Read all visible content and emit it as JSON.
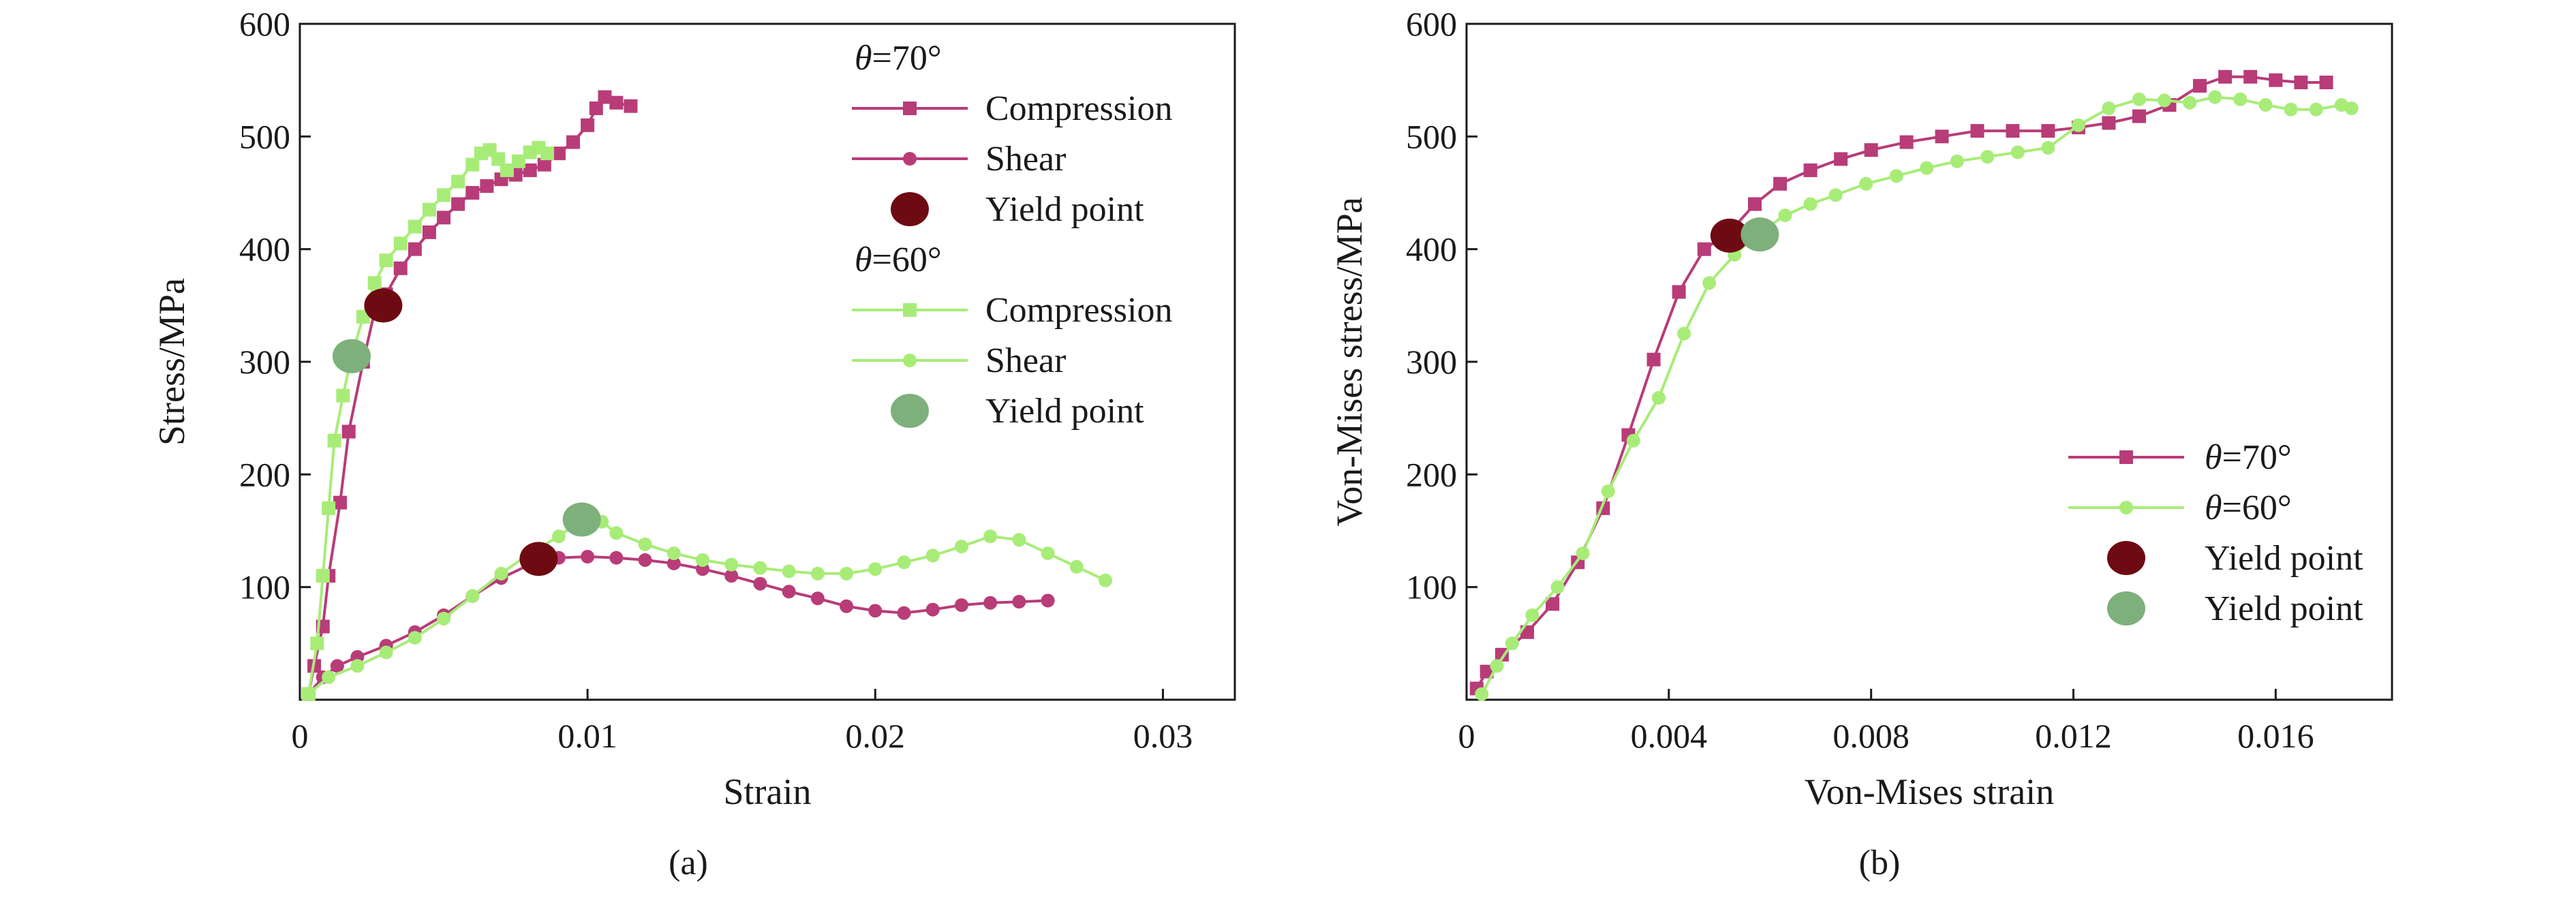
{
  "colors": {
    "theta70": "#b83c78",
    "theta60": "#a8ec78",
    "yield70": "#6e0a12",
    "yield60": "#7eb07c",
    "axis": "#1a1a1a"
  },
  "chart_data": [
    {
      "type": "line",
      "panel_label": "(a)",
      "xlabel": "Strain",
      "ylabel": "Stress/MPa",
      "xlim": [
        0,
        0.0325
      ],
      "ylim": [
        0,
        600
      ],
      "xticks": [
        0,
        0.01,
        0.02,
        0.03
      ],
      "xtick_labels": [
        "0",
        "0.01",
        "0.02",
        "0.03"
      ],
      "yticks": [
        100,
        200,
        300,
        400,
        500,
        600
      ],
      "ytick_labels": [
        "100",
        "200",
        "300",
        "400",
        "500",
        "600"
      ],
      "grid": false,
      "legend_position": "top-right",
      "legend_groups": [
        {
          "heading_symbol": "θ",
          "heading_value": "=70°",
          "entries": [
            "Compression",
            "Shear",
            "Yield point"
          ]
        },
        {
          "heading_symbol": "θ",
          "heading_value": "=60°",
          "entries": [
            "Compression",
            "Shear",
            "Yield point"
          ]
        }
      ],
      "series": [
        {
          "name": "θ=70° Compression",
          "color_key": "theta70",
          "marker": "square",
          "points": [
            [
              0.0003,
              5
            ],
            [
              0.0005,
              30
            ],
            [
              0.0008,
              65
            ],
            [
              0.001,
              110
            ],
            [
              0.0014,
              175
            ],
            [
              0.0017,
              238
            ],
            [
              0.0022,
              300
            ],
            [
              0.0026,
              345
            ],
            [
              0.003,
              360
            ],
            [
              0.0035,
              383
            ],
            [
              0.004,
              400
            ],
            [
              0.0045,
              415
            ],
            [
              0.005,
              428
            ],
            [
              0.0055,
              440
            ],
            [
              0.006,
              450
            ],
            [
              0.0065,
              456
            ],
            [
              0.007,
              462
            ],
            [
              0.0075,
              466
            ],
            [
              0.008,
              470
            ],
            [
              0.0085,
              475
            ],
            [
              0.009,
              485
            ],
            [
              0.0095,
              495
            ],
            [
              0.01,
              510
            ],
            [
              0.0103,
              525
            ],
            [
              0.0106,
              535
            ],
            [
              0.011,
              530
            ],
            [
              0.0115,
              527
            ]
          ]
        },
        {
          "name": "θ=70° Shear",
          "color_key": "theta70",
          "marker": "circle",
          "points": [
            [
              0.0003,
              5
            ],
            [
              0.0008,
              20
            ],
            [
              0.0013,
              30
            ],
            [
              0.002,
              38
            ],
            [
              0.003,
              48
            ],
            [
              0.004,
              60
            ],
            [
              0.005,
              75
            ],
            [
              0.006,
              92
            ],
            [
              0.007,
              108
            ],
            [
              0.008,
              120
            ],
            [
              0.009,
              126
            ],
            [
              0.01,
              127
            ],
            [
              0.011,
              126
            ],
            [
              0.012,
              124
            ],
            [
              0.013,
              121
            ],
            [
              0.014,
              116
            ],
            [
              0.015,
              110
            ],
            [
              0.016,
              103
            ],
            [
              0.017,
              96
            ],
            [
              0.018,
              90
            ],
            [
              0.019,
              83
            ],
            [
              0.02,
              79
            ],
            [
              0.021,
              77
            ],
            [
              0.022,
              80
            ],
            [
              0.023,
              84
            ],
            [
              0.024,
              86
            ],
            [
              0.025,
              87
            ],
            [
              0.026,
              88
            ]
          ]
        },
        {
          "name": "θ=60° Compression",
          "color_key": "theta60",
          "marker": "square",
          "points": [
            [
              0.0003,
              5
            ],
            [
              0.0006,
              50
            ],
            [
              0.0008,
              110
            ],
            [
              0.001,
              170
            ],
            [
              0.0012,
              230
            ],
            [
              0.0015,
              270
            ],
            [
              0.0018,
              305
            ],
            [
              0.0022,
              340
            ],
            [
              0.0026,
              370
            ],
            [
              0.003,
              390
            ],
            [
              0.0035,
              405
            ],
            [
              0.004,
              420
            ],
            [
              0.0045,
              435
            ],
            [
              0.005,
              448
            ],
            [
              0.0055,
              460
            ],
            [
              0.006,
              475
            ],
            [
              0.0063,
              485
            ],
            [
              0.0066,
              488
            ],
            [
              0.0069,
              480
            ],
            [
              0.0072,
              470
            ],
            [
              0.0076,
              478
            ],
            [
              0.008,
              486
            ],
            [
              0.0083,
              490
            ],
            [
              0.0086,
              485
            ]
          ]
        },
        {
          "name": "θ=60° Shear",
          "color_key": "theta60",
          "marker": "circle",
          "points": [
            [
              0.0003,
              5
            ],
            [
              0.001,
              20
            ],
            [
              0.002,
              30
            ],
            [
              0.003,
              42
            ],
            [
              0.004,
              55
            ],
            [
              0.005,
              72
            ],
            [
              0.006,
              92
            ],
            [
              0.007,
              112
            ],
            [
              0.008,
              130
            ],
            [
              0.009,
              145
            ],
            [
              0.0098,
              160
            ],
            [
              0.0105,
              158
            ],
            [
              0.011,
              148
            ],
            [
              0.012,
              138
            ],
            [
              0.013,
              130
            ],
            [
              0.014,
              124
            ],
            [
              0.015,
              120
            ],
            [
              0.016,
              117
            ],
            [
              0.017,
              114
            ],
            [
              0.018,
              112
            ],
            [
              0.019,
              112
            ],
            [
              0.02,
              116
            ],
            [
              0.021,
              122
            ],
            [
              0.022,
              128
            ],
            [
              0.023,
              136
            ],
            [
              0.024,
              145
            ],
            [
              0.025,
              142
            ],
            [
              0.026,
              130
            ],
            [
              0.027,
              118
            ],
            [
              0.028,
              106
            ]
          ]
        }
      ],
      "yield_points": [
        {
          "name": "θ=70° Compression yield",
          "color_key": "yield70",
          "x": 0.0029,
          "y": 350
        },
        {
          "name": "θ=70° Shear yield",
          "color_key": "yield70",
          "x": 0.0083,
          "y": 125
        },
        {
          "name": "θ=60° Compression yield",
          "color_key": "yield60",
          "x": 0.0018,
          "y": 305
        },
        {
          "name": "θ=60° Shear yield",
          "color_key": "yield60",
          "x": 0.0098,
          "y": 160
        }
      ]
    },
    {
      "type": "line",
      "panel_label": "(b)",
      "xlabel": "Von-Mises strain",
      "ylabel": "Von-Mises stress/MPa",
      "xlim": [
        0,
        0.0183
      ],
      "ylim": [
        0,
        600
      ],
      "xticks": [
        0,
        0.004,
        0.008,
        0.012,
        0.016
      ],
      "xtick_labels": [
        "0",
        "0.004",
        "0.008",
        "0.012",
        "0.016"
      ],
      "yticks": [
        100,
        200,
        300,
        400,
        500,
        600
      ],
      "ytick_labels": [
        "100",
        "200",
        "300",
        "400",
        "500",
        "600"
      ],
      "grid": false,
      "legend_position": "bottom-right",
      "legend_entries": [
        {
          "symbol": "θ",
          "value": "=70°"
        },
        {
          "symbol": "θ",
          "value": "=60°"
        },
        {
          "symbol": "",
          "value": "Yield point"
        },
        {
          "symbol": "",
          "value": "Yield point"
        }
      ],
      "series": [
        {
          "name": "θ=70°",
          "color_key": "theta70",
          "marker": "square",
          "points": [
            [
              0.0002,
              10
            ],
            [
              0.0004,
              25
            ],
            [
              0.0007,
              40
            ],
            [
              0.0012,
              60
            ],
            [
              0.0017,
              85
            ],
            [
              0.0022,
              122
            ],
            [
              0.0027,
              170
            ],
            [
              0.0032,
              235
            ],
            [
              0.0037,
              302
            ],
            [
              0.0042,
              362
            ],
            [
              0.0047,
              400
            ],
            [
              0.0052,
              415
            ],
            [
              0.0057,
              440
            ],
            [
              0.0062,
              458
            ],
            [
              0.0068,
              470
            ],
            [
              0.0074,
              480
            ],
            [
              0.008,
              488
            ],
            [
              0.0087,
              495
            ],
            [
              0.0094,
              500
            ],
            [
              0.0101,
              505
            ],
            [
              0.0108,
              505
            ],
            [
              0.0115,
              505
            ],
            [
              0.0121,
              508
            ],
            [
              0.0127,
              512
            ],
            [
              0.0133,
              518
            ],
            [
              0.0139,
              528
            ],
            [
              0.0145,
              545
            ],
            [
              0.015,
              553
            ],
            [
              0.0155,
              553
            ],
            [
              0.016,
              550
            ],
            [
              0.0165,
              548
            ],
            [
              0.017,
              548
            ]
          ]
        },
        {
          "name": "θ=60°",
          "color_key": "theta60",
          "marker": "circle",
          "points": [
            [
              0.0003,
              5
            ],
            [
              0.0006,
              30
            ],
            [
              0.0009,
              50
            ],
            [
              0.0013,
              75
            ],
            [
              0.0018,
              100
            ],
            [
              0.0023,
              130
            ],
            [
              0.0028,
              185
            ],
            [
              0.0033,
              230
            ],
            [
              0.0038,
              268
            ],
            [
              0.0043,
              325
            ],
            [
              0.0048,
              370
            ],
            [
              0.0053,
              395
            ],
            [
              0.0058,
              415
            ],
            [
              0.0063,
              430
            ],
            [
              0.0068,
              440
            ],
            [
              0.0073,
              448
            ],
            [
              0.0079,
              458
            ],
            [
              0.0085,
              465
            ],
            [
              0.0091,
              472
            ],
            [
              0.0097,
              478
            ],
            [
              0.0103,
              482
            ],
            [
              0.0109,
              486
            ],
            [
              0.0115,
              490
            ],
            [
              0.0121,
              510
            ],
            [
              0.0127,
              525
            ],
            [
              0.0133,
              533
            ],
            [
              0.0138,
              532
            ],
            [
              0.0143,
              530
            ],
            [
              0.0148,
              535
            ],
            [
              0.0153,
              533
            ],
            [
              0.0158,
              528
            ],
            [
              0.0163,
              524
            ],
            [
              0.0168,
              524
            ],
            [
              0.0173,
              528
            ],
            [
              0.0175,
              525
            ]
          ]
        }
      ],
      "yield_points": [
        {
          "name": "θ=70° yield",
          "color_key": "yield70",
          "x": 0.0052,
          "y": 412
        },
        {
          "name": "θ=60° yield",
          "color_key": "yield60",
          "x": 0.0058,
          "y": 413
        }
      ]
    }
  ]
}
